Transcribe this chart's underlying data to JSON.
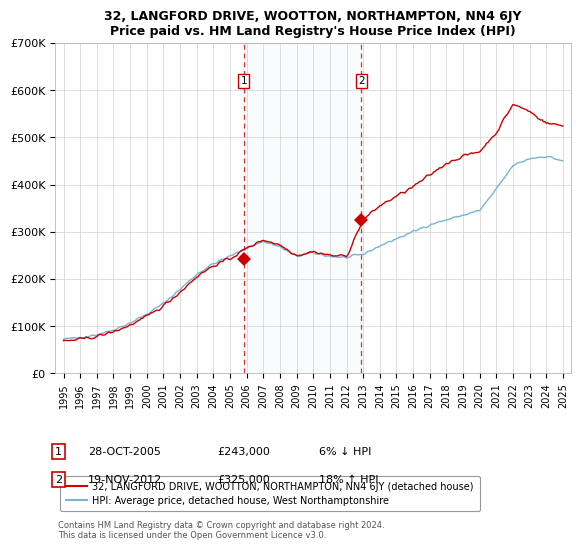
{
  "title": "32, LANGFORD DRIVE, WOOTTON, NORTHAMPTON, NN4 6JY",
  "subtitle": "Price paid vs. HM Land Registry's House Price Index (HPI)",
  "ylim": [
    0,
    700000
  ],
  "yticks": [
    0,
    100000,
    200000,
    300000,
    400000,
    500000,
    600000,
    700000
  ],
  "ytick_labels": [
    "£0",
    "£100K",
    "£200K",
    "£300K",
    "£400K",
    "£500K",
    "£600K",
    "£700K"
  ],
  "xlim_start": 1994.5,
  "xlim_end": 2025.5,
  "red_line_color": "#cc0000",
  "blue_line_color": "#7ab3d4",
  "vline_color": "#cc0000",
  "sale1_x": 2005.82,
  "sale1_y": 243000,
  "sale2_x": 2012.88,
  "sale2_y": 325000,
  "legend_line1": "32, LANGFORD DRIVE, WOOTTON, NORTHAMPTON, NN4 6JY (detached house)",
  "legend_line2": "HPI: Average price, detached house, West Northamptonshire",
  "ann1_num": "1",
  "ann1_date": "28-OCT-2005",
  "ann1_price": "£243,000",
  "ann1_hpi": "6% ↓ HPI",
  "ann2_num": "2",
  "ann2_date": "19-NOV-2012",
  "ann2_price": "£325,000",
  "ann2_hpi": "18% ↑ HPI",
  "footer": "Contains HM Land Registry data © Crown copyright and database right 2024.\nThis data is licensed under the Open Government Licence v3.0.",
  "background_color": "#ffffff"
}
